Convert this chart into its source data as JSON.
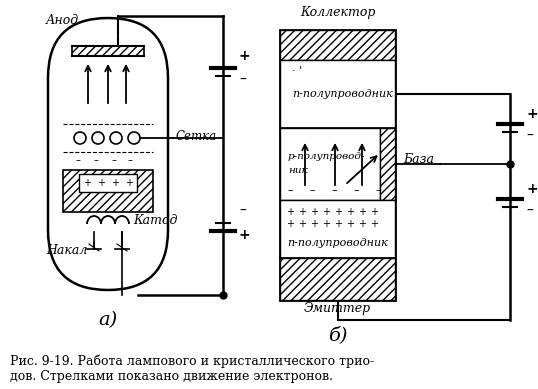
{
  "caption_line1": "Рис. 9-19. Работа лампового и кристаллического трио-",
  "caption_line2": "дов. Стрелками показано движение электронов.",
  "label_a": "а)",
  "label_b": "б)",
  "label_anode": "Анод",
  "label_cathode": "Катод",
  "label_grid": "Сетка",
  "label_filament": "Накал",
  "label_collector": "Коллектор",
  "label_base": "База",
  "label_emitter": "Эмиттер",
  "label_n1": "п-полупроводник",
  "label_p1": "р-полупровод-",
  "label_p2": "ник",
  "label_n2": "п-полупроводник"
}
